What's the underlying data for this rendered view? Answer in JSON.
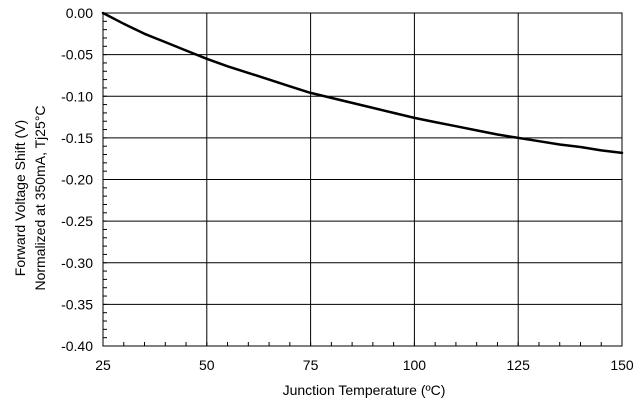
{
  "chart_data": {
    "type": "line",
    "title": "",
    "xlabel": "Junction Temperature (ºC)",
    "ylabel_lines": [
      "Forward Voltage Shift (V)",
      "Normalized at 350mA, Tj25°C"
    ],
    "xlim": [
      25,
      150
    ],
    "ylim": [
      -0.4,
      0.0
    ],
    "x_ticks": [
      25,
      50,
      75,
      100,
      125,
      150
    ],
    "x_tick_labels": [
      "25",
      "50",
      "75",
      "100",
      "125",
      "150"
    ],
    "y_ticks": [
      0.0,
      -0.05,
      -0.1,
      -0.15,
      -0.2,
      -0.25,
      -0.3,
      -0.35,
      -0.4
    ],
    "y_tick_labels": [
      "0.00",
      "-0.05",
      "-0.10",
      "-0.15",
      "-0.20",
      "-0.25",
      "-0.30",
      "-0.35",
      "-0.40"
    ],
    "grid": true,
    "legend": "none",
    "series": [
      {
        "x": [
          25,
          30,
          35,
          40,
          45,
          50,
          55,
          60,
          65,
          70,
          75,
          80,
          85,
          90,
          95,
          100,
          105,
          110,
          115,
          120,
          125,
          130,
          135,
          140,
          145,
          150
        ],
        "values": [
          0.0,
          -0.013,
          -0.025,
          -0.035,
          -0.045,
          -0.055,
          -0.064,
          -0.072,
          -0.08,
          -0.088,
          -0.096,
          -0.102,
          -0.108,
          -0.114,
          -0.12,
          -0.126,
          -0.131,
          -0.136,
          -0.141,
          -0.146,
          -0.15,
          -0.154,
          -0.158,
          -0.161,
          -0.165,
          -0.168
        ],
        "color": "#000000"
      }
    ]
  }
}
